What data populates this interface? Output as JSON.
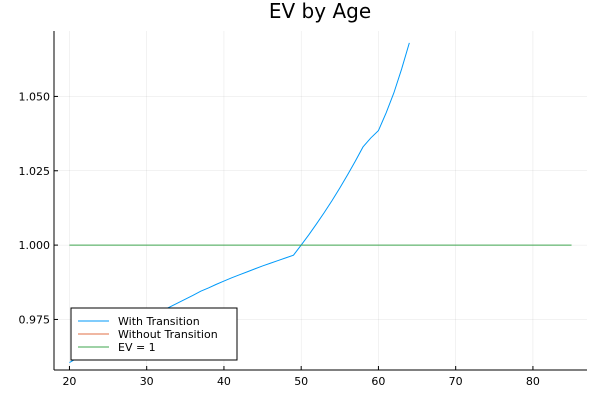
{
  "chart_data": {
    "type": "line",
    "title": "EV by Age",
    "xlabel": "",
    "ylabel": "",
    "xlim": [
      18,
      87
    ],
    "ylim": [
      0.958,
      1.072
    ],
    "x_ticks": [
      20,
      30,
      40,
      50,
      60,
      70,
      80
    ],
    "y_ticks": [
      0.975,
      1.0,
      1.025,
      1.05
    ],
    "x_tick_labels": [
      "20",
      "30",
      "40",
      "50",
      "60",
      "70",
      "80"
    ],
    "y_tick_labels": [
      "0.975",
      "1.000",
      "1.025",
      "1.050"
    ],
    "grid": true,
    "legend_position": "bottom-left",
    "series": [
      {
        "name": "With Transition",
        "color": "#009AFA",
        "x": [
          20,
          21,
          22,
          23,
          24,
          25,
          26,
          27,
          28,
          29,
          30,
          31,
          32,
          33,
          34,
          35,
          36,
          37,
          38,
          39,
          40,
          41,
          42,
          43,
          44,
          45,
          46,
          47,
          48,
          49,
          50,
          51,
          52,
          53,
          54,
          55,
          56,
          57,
          58,
          59,
          60,
          61,
          62,
          63,
          64
        ],
        "values": [
          0.9605,
          0.962,
          0.9635,
          0.965,
          0.9665,
          0.968,
          0.9695,
          0.971,
          0.9725,
          0.974,
          0.9755,
          0.977,
          0.978,
          0.9792,
          0.9805,
          0.9818,
          0.9831,
          0.9845,
          0.9856,
          0.9868,
          0.9879,
          0.989,
          0.99,
          0.991,
          0.992,
          0.993,
          0.9939,
          0.9948,
          0.9957,
          0.9966,
          1.0,
          1.0035,
          1.0072,
          1.011,
          1.015,
          1.0192,
          1.0236,
          1.0282,
          1.033,
          1.036,
          1.0385,
          1.0445,
          1.0512,
          1.0592,
          1.068
        ]
      },
      {
        "name": "Without Transition",
        "color": "#E26F46",
        "x": [],
        "values": []
      },
      {
        "name": "EV = 1",
        "color": "#3DA44D",
        "x": [
          20,
          85
        ],
        "values": [
          1.0,
          1.0
        ]
      }
    ]
  }
}
